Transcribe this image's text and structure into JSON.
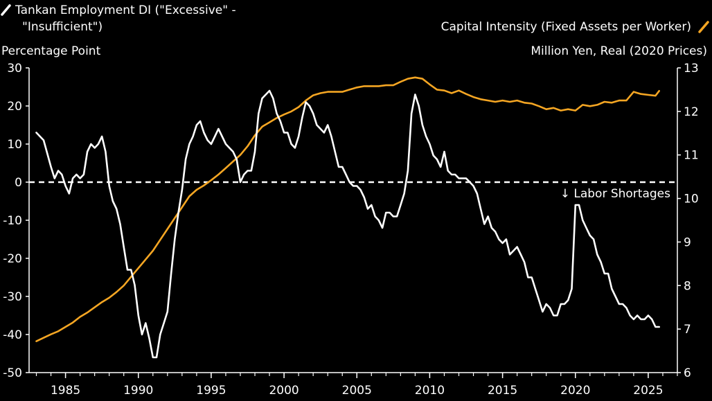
{
  "chart_data": {
    "type": "line",
    "legend": [
      {
        "label": "Tankan Employment DI (\"Excessive\" -",
        "label2": "\"Insufficient\")",
        "color": "#ffffff",
        "axis": "left",
        "placement": "top-left"
      },
      {
        "label": "Capital Intensity (Fixed Assets per Worker)",
        "color": "#f5a623",
        "axis": "right",
        "placement": "top-right"
      }
    ],
    "y_left": {
      "label": "Percentage Point",
      "min": -50,
      "max": 30,
      "ticks": [
        30,
        20,
        10,
        0,
        -10,
        -20,
        -30,
        -40,
        -50
      ]
    },
    "y_right": {
      "label": "Million Yen, Real (2020 Prices)",
      "min": 6,
      "max": 13,
      "ticks": [
        13,
        12,
        11,
        10,
        9,
        8,
        7,
        6
      ]
    },
    "x_axis": {
      "min": 1982.5,
      "max": 2027.0,
      "ticks": [
        1985,
        1990,
        1995,
        2000,
        2005,
        2010,
        2015,
        2020,
        2025
      ]
    },
    "annotation": {
      "text": "↓ Labor Shortages",
      "reference_y": 0
    },
    "series": [
      {
        "name": "Tankan Employment DI (\"Excessive\" - \"Insufficient\")",
        "axis": "left",
        "color": "#ffffff",
        "points": [
          [
            1983.0,
            13
          ],
          [
            1983.5,
            11
          ],
          [
            1984.0,
            4
          ],
          [
            1984.25,
            1
          ],
          [
            1984.5,
            3
          ],
          [
            1984.75,
            2
          ],
          [
            1985.0,
            -1
          ],
          [
            1985.25,
            -3
          ],
          [
            1985.5,
            1
          ],
          [
            1985.75,
            2
          ],
          [
            1986.0,
            1
          ],
          [
            1986.25,
            2
          ],
          [
            1986.5,
            8
          ],
          [
            1986.75,
            10
          ],
          [
            1987.0,
            9
          ],
          [
            1987.25,
            10
          ],
          [
            1987.5,
            12
          ],
          [
            1987.75,
            8
          ],
          [
            1988.0,
            -1
          ],
          [
            1988.25,
            -5
          ],
          [
            1988.5,
            -7
          ],
          [
            1988.75,
            -11
          ],
          [
            1989.0,
            -17
          ],
          [
            1989.25,
            -23
          ],
          [
            1989.5,
            -23
          ],
          [
            1989.75,
            -27
          ],
          [
            1990.0,
            -35
          ],
          [
            1990.25,
            -40
          ],
          [
            1990.5,
            -37
          ],
          [
            1990.75,
            -41
          ],
          [
            1991.0,
            -46
          ],
          [
            1991.25,
            -46
          ],
          [
            1991.5,
            -40
          ],
          [
            1991.75,
            -37
          ],
          [
            1992.0,
            -34
          ],
          [
            1992.25,
            -24
          ],
          [
            1992.5,
            -15
          ],
          [
            1992.75,
            -8
          ],
          [
            1993.0,
            -2
          ],
          [
            1993.25,
            6
          ],
          [
            1993.5,
            10
          ],
          [
            1993.75,
            12
          ],
          [
            1994.0,
            15
          ],
          [
            1994.25,
            16
          ],
          [
            1994.5,
            13
          ],
          [
            1994.75,
            11
          ],
          [
            1995.0,
            10
          ],
          [
            1995.25,
            12
          ],
          [
            1995.5,
            14
          ],
          [
            1995.75,
            12
          ],
          [
            1996.0,
            10
          ],
          [
            1996.25,
            9
          ],
          [
            1996.5,
            8
          ],
          [
            1996.75,
            6
          ],
          [
            1997.0,
            0
          ],
          [
            1997.25,
            2
          ],
          [
            1997.5,
            3
          ],
          [
            1997.75,
            3
          ],
          [
            1998.0,
            8
          ],
          [
            1998.25,
            18
          ],
          [
            1998.5,
            22
          ],
          [
            1998.75,
            23
          ],
          [
            1999.0,
            24
          ],
          [
            1999.25,
            22
          ],
          [
            1999.5,
            18
          ],
          [
            1999.75,
            16
          ],
          [
            2000.0,
            13
          ],
          [
            2000.25,
            13
          ],
          [
            2000.5,
            10
          ],
          [
            2000.75,
            9
          ],
          [
            2001.0,
            12
          ],
          [
            2001.25,
            17
          ],
          [
            2001.5,
            21
          ],
          [
            2001.75,
            20
          ],
          [
            2002.0,
            18
          ],
          [
            2002.25,
            15
          ],
          [
            2002.5,
            14
          ],
          [
            2002.75,
            13
          ],
          [
            2003.0,
            15
          ],
          [
            2003.25,
            12
          ],
          [
            2003.5,
            8
          ],
          [
            2003.75,
            4
          ],
          [
            2004.0,
            4
          ],
          [
            2004.25,
            2
          ],
          [
            2004.5,
            0
          ],
          [
            2004.75,
            -1
          ],
          [
            2005.0,
            -1
          ],
          [
            2005.25,
            -2
          ],
          [
            2005.5,
            -4
          ],
          [
            2005.75,
            -7
          ],
          [
            2006.0,
            -6
          ],
          [
            2006.25,
            -9
          ],
          [
            2006.5,
            -10
          ],
          [
            2006.75,
            -12
          ],
          [
            2007.0,
            -8
          ],
          [
            2007.25,
            -8
          ],
          [
            2007.5,
            -9
          ],
          [
            2007.75,
            -9
          ],
          [
            2008.0,
            -6
          ],
          [
            2008.25,
            -3
          ],
          [
            2008.5,
            3
          ],
          [
            2008.75,
            18
          ],
          [
            2009.0,
            23
          ],
          [
            2009.25,
            20
          ],
          [
            2009.5,
            15
          ],
          [
            2009.75,
            12
          ],
          [
            2010.0,
            10
          ],
          [
            2010.25,
            7
          ],
          [
            2010.5,
            6
          ],
          [
            2010.75,
            4
          ],
          [
            2011.0,
            8
          ],
          [
            2011.25,
            3
          ],
          [
            2011.5,
            2
          ],
          [
            2011.75,
            2
          ],
          [
            2012.0,
            1
          ],
          [
            2012.25,
            1
          ],
          [
            2012.5,
            1
          ],
          [
            2012.75,
            0
          ],
          [
            2013.0,
            -1
          ],
          [
            2013.25,
            -3
          ],
          [
            2013.5,
            -7
          ],
          [
            2013.75,
            -11
          ],
          [
            2014.0,
            -9
          ],
          [
            2014.25,
            -12
          ],
          [
            2014.5,
            -13
          ],
          [
            2014.75,
            -15
          ],
          [
            2015.0,
            -16
          ],
          [
            2015.25,
            -15
          ],
          [
            2015.5,
            -19
          ],
          [
            2015.75,
            -18
          ],
          [
            2016.0,
            -17
          ],
          [
            2016.25,
            -19
          ],
          [
            2016.5,
            -21
          ],
          [
            2016.75,
            -25
          ],
          [
            2017.0,
            -25
          ],
          [
            2017.25,
            -28
          ],
          [
            2017.5,
            -31
          ],
          [
            2017.75,
            -34
          ],
          [
            2018.0,
            -32
          ],
          [
            2018.25,
            -33
          ],
          [
            2018.5,
            -35
          ],
          [
            2018.75,
            -35
          ],
          [
            2019.0,
            -32
          ],
          [
            2019.25,
            -32
          ],
          [
            2019.5,
            -31
          ],
          [
            2019.75,
            -28
          ],
          [
            2020.0,
            -6
          ],
          [
            2020.25,
            -6
          ],
          [
            2020.5,
            -10
          ],
          [
            2020.75,
            -12
          ],
          [
            2021.0,
            -14
          ],
          [
            2021.25,
            -15
          ],
          [
            2021.5,
            -19
          ],
          [
            2021.75,
            -21
          ],
          [
            2022.0,
            -24
          ],
          [
            2022.25,
            -24
          ],
          [
            2022.5,
            -28
          ],
          [
            2022.75,
            -30
          ],
          [
            2023.0,
            -32
          ],
          [
            2023.25,
            -32
          ],
          [
            2023.5,
            -33
          ],
          [
            2023.75,
            -35
          ],
          [
            2024.0,
            -36
          ],
          [
            2024.25,
            -35
          ],
          [
            2024.5,
            -36
          ],
          [
            2024.75,
            -36
          ],
          [
            2025.0,
            -35
          ],
          [
            2025.25,
            -36
          ],
          [
            2025.5,
            -38
          ],
          [
            2025.75,
            -38
          ]
        ]
      },
      {
        "name": "Capital Intensity (Fixed Assets per Worker)",
        "axis": "right",
        "color": "#f5a623",
        "points": [
          [
            1983.0,
            6.72
          ],
          [
            1983.5,
            6.8
          ],
          [
            1984.0,
            6.88
          ],
          [
            1984.5,
            6.95
          ],
          [
            1985.0,
            7.05
          ],
          [
            1985.5,
            7.15
          ],
          [
            1986.0,
            7.28
          ],
          [
            1986.5,
            7.38
          ],
          [
            1987.0,
            7.5
          ],
          [
            1987.5,
            7.62
          ],
          [
            1988.0,
            7.72
          ],
          [
            1988.5,
            7.85
          ],
          [
            1989.0,
            8.0
          ],
          [
            1989.5,
            8.2
          ],
          [
            1990.0,
            8.4
          ],
          [
            1990.5,
            8.6
          ],
          [
            1991.0,
            8.8
          ],
          [
            1991.5,
            9.05
          ],
          [
            1992.0,
            9.3
          ],
          [
            1992.5,
            9.55
          ],
          [
            1993.0,
            9.8
          ],
          [
            1993.5,
            10.05
          ],
          [
            1994.0,
            10.2
          ],
          [
            1994.5,
            10.3
          ],
          [
            1995.0,
            10.42
          ],
          [
            1995.5,
            10.55
          ],
          [
            1996.0,
            10.7
          ],
          [
            1996.5,
            10.85
          ],
          [
            1997.0,
            11.0
          ],
          [
            1997.5,
            11.2
          ],
          [
            1998.0,
            11.45
          ],
          [
            1998.5,
            11.65
          ],
          [
            1999.0,
            11.75
          ],
          [
            1999.5,
            11.85
          ],
          [
            2000.0,
            11.93
          ],
          [
            2000.5,
            12.0
          ],
          [
            2001.0,
            12.1
          ],
          [
            2001.5,
            12.25
          ],
          [
            2002.0,
            12.37
          ],
          [
            2002.5,
            12.42
          ],
          [
            2003.0,
            12.45
          ],
          [
            2003.5,
            12.45
          ],
          [
            2004.0,
            12.45
          ],
          [
            2004.5,
            12.5
          ],
          [
            2005.0,
            12.55
          ],
          [
            2005.5,
            12.58
          ],
          [
            2006.0,
            12.58
          ],
          [
            2006.5,
            12.58
          ],
          [
            2007.0,
            12.6
          ],
          [
            2007.5,
            12.6
          ],
          [
            2008.0,
            12.68
          ],
          [
            2008.5,
            12.75
          ],
          [
            2009.0,
            12.78
          ],
          [
            2009.5,
            12.75
          ],
          [
            2010.0,
            12.62
          ],
          [
            2010.5,
            12.5
          ],
          [
            2011.0,
            12.48
          ],
          [
            2011.5,
            12.42
          ],
          [
            2012.0,
            12.48
          ],
          [
            2012.5,
            12.4
          ],
          [
            2013.0,
            12.33
          ],
          [
            2013.5,
            12.28
          ],
          [
            2014.0,
            12.25
          ],
          [
            2014.5,
            12.22
          ],
          [
            2015.0,
            12.25
          ],
          [
            2015.5,
            12.22
          ],
          [
            2016.0,
            12.25
          ],
          [
            2016.5,
            12.2
          ],
          [
            2017.0,
            12.18
          ],
          [
            2017.5,
            12.12
          ],
          [
            2018.0,
            12.05
          ],
          [
            2018.5,
            12.08
          ],
          [
            2019.0,
            12.02
          ],
          [
            2019.5,
            12.05
          ],
          [
            2020.0,
            12.02
          ],
          [
            2020.5,
            12.15
          ],
          [
            2021.0,
            12.12
          ],
          [
            2021.5,
            12.15
          ],
          [
            2022.0,
            12.22
          ],
          [
            2022.5,
            12.2
          ],
          [
            2023.0,
            12.25
          ],
          [
            2023.5,
            12.25
          ],
          [
            2024.0,
            12.45
          ],
          [
            2024.5,
            12.4
          ],
          [
            2025.0,
            12.38
          ],
          [
            2025.5,
            12.36
          ],
          [
            2025.75,
            12.47
          ]
        ]
      }
    ]
  }
}
